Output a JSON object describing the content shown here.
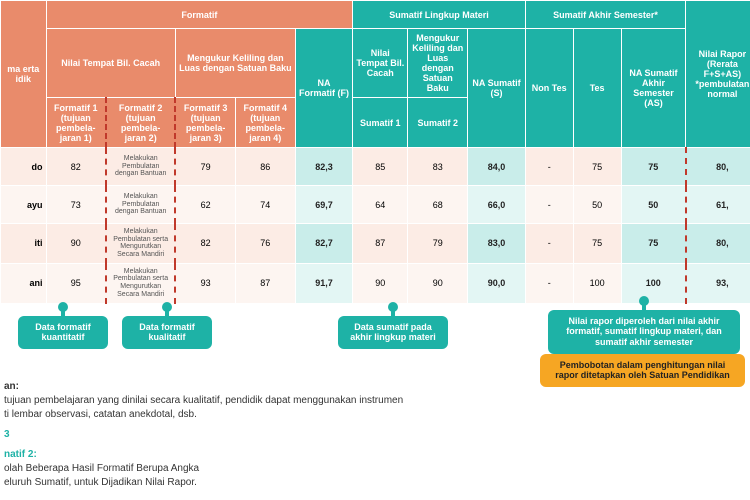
{
  "headers": {
    "formatif": "Formatif",
    "slm": "Sumatif Lingkup Materi",
    "sas": "Sumatif Akhir Semester*",
    "name_col": "ma erta idik",
    "nilai_tempat": "Nilai Tempat Bil. Cacah",
    "mengukur": "Mengukur Keliling dan Luas dengan Satuan Baku",
    "na_f": "NA Formatif (F)",
    "s_nilai_tempat": "Nilai Tempat Bil. Cacah",
    "s_mengukur": "Mengukur Keliling dan Luas dengan Satuan Baku",
    "na_s": "NA Sumatif (S)",
    "nontes": "Non Tes",
    "tes": "Tes",
    "na_as": "NA Sumatif Akhir Semester (AS)",
    "nilai_rapor": "Nilai Rapor (Rerata F+S+AS) *pembulatan normal",
    "f1": "Formatif 1 (tujuan pembela- jaran 1)",
    "f2": "Formatif 2 (tujuan pembela- jaran 2)",
    "f3": "Formatif 3 (tujuan pembela- jaran 3)",
    "f4": "Formatif 4 (tujuan pembela- jaran 4)",
    "s1": "Sumatif 1",
    "s2": "Sumatif 2"
  },
  "qual": {
    "a": "Melakukan Pembulatan dengan Bantuan",
    "b": "Melakukan Pembulatan serta Mengurutkan Secara Mandiri"
  },
  "rows": [
    {
      "name": "do",
      "f1": "82",
      "q": "a",
      "f3": "79",
      "f4": "86",
      "naf": "82,3",
      "s1": "85",
      "s2": "83",
      "nas": "84,0",
      "nt": "-",
      "tes": "75",
      "naas": "75",
      "nr": "80,"
    },
    {
      "name": "ayu",
      "f1": "73",
      "q": "a",
      "f3": "62",
      "f4": "74",
      "naf": "69,7",
      "s1": "64",
      "s2": "68",
      "nas": "66,0",
      "nt": "-",
      "tes": "50",
      "naas": "50",
      "nr": "61,"
    },
    {
      "name": "iti",
      "f1": "90",
      "q": "b",
      "f3": "82",
      "f4": "76",
      "naf": "82,7",
      "s1": "87",
      "s2": "79",
      "nas": "83,0",
      "nt": "-",
      "tes": "75",
      "naas": "75",
      "nr": "80,"
    },
    {
      "name": "ani",
      "f1": "95",
      "q": "b",
      "f3": "93",
      "f4": "87",
      "naf": "91,7",
      "s1": "90",
      "s2": "90",
      "nas": "90,0",
      "nt": "-",
      "tes": "100",
      "naas": "100",
      "nr": "93,"
    }
  ],
  "callouts": {
    "kuant": "Data formatif kuantitatif",
    "kual": "Data formatif kualitatif",
    "sumat": "Data sumatif pada akhir lingkup materi",
    "rapor": "Nilai rapor diperoleh dari nilai akhir formatif, sumatif lingkup materi, dan sumatif akhir semester",
    "bobot": "Pembobotan dalam penghitungan nilai rapor ditetapkan oleh Satuan Pendidikan"
  },
  "notes": {
    "n_title": "an:",
    "n1": "tujuan pembelajaran yang dinilai secara kualitatif, pendidik dapat menggunakan instrumen",
    "n2": "ti lembar observasi, catatan anekdotal, dsb.",
    "alt_title": "3",
    "alt_sub": "natif 2:",
    "alt_a": "olah Beberapa Hasil Formatif Berupa Angka",
    "alt_b": "eluruh Sumatif, untuk Dijadikan Nilai Rapor."
  }
}
